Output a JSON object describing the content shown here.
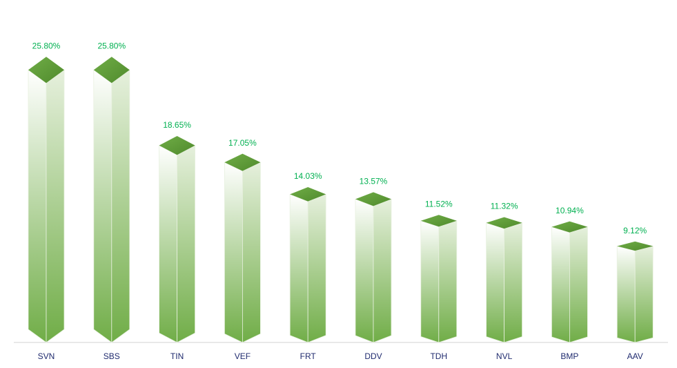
{
  "chart_data": {
    "type": "bar",
    "categories": [
      "SVN",
      "SBS",
      "TIN",
      "VEF",
      "FRT",
      "DDV",
      "TDH",
      "NVL",
      "BMP",
      "AAV"
    ],
    "values": [
      25.8,
      25.8,
      18.65,
      17.05,
      14.03,
      13.57,
      11.52,
      11.32,
      10.94,
      9.12
    ],
    "value_labels": [
      "25.80%",
      "25.80%",
      "18.65%",
      "17.05%",
      "14.03%",
      "13.57%",
      "11.52%",
      "11.32%",
      "10.94%",
      "9.12%"
    ],
    "color": "#70ad47"
  }
}
